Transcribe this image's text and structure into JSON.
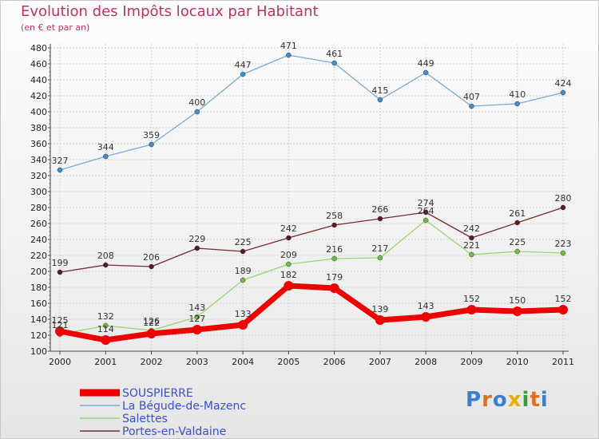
{
  "title": "Evolution des Impôts locaux par Habitant",
  "subtitle": "(en € et par an)",
  "brand": "Proxiti",
  "chart_data": {
    "type": "line",
    "categories": [
      "2000",
      "2001",
      "2002",
      "2003",
      "2004",
      "2005",
      "2006",
      "2007",
      "2008",
      "2009",
      "2010",
      "2011"
    ],
    "ylim": [
      100,
      480
    ],
    "yticks": [
      100,
      120,
      140,
      160,
      180,
      200,
      220,
      240,
      260,
      280,
      300,
      320,
      340,
      360,
      380,
      400,
      420,
      440,
      460,
      480
    ],
    "grid": true,
    "series": [
      {
        "name": "La Bégude-de-Mazenc",
        "color": "#7aaad8",
        "marker": "#3d8fd0",
        "width": 1.3,
        "values": [
          327,
          344,
          359,
          400,
          447,
          471,
          461,
          415,
          449,
          407,
          410,
          424
        ],
        "labels": [
          "327",
          "344",
          "359",
          "400",
          "447",
          "471",
          "461",
          "415",
          "449",
          "407",
          "410",
          "424"
        ]
      },
      {
        "name": "Portes-en-Valdaine",
        "color": "#7a2a30",
        "marker": "#5a1a20",
        "width": 1.3,
        "values": [
          199,
          208,
          206,
          229,
          225,
          242,
          258,
          266,
          274,
          242,
          261,
          280
        ],
        "labels": [
          "199",
          "208",
          "206",
          "229",
          "225",
          "242",
          "258",
          "266",
          "274",
          "242",
          "261",
          "280"
        ]
      },
      {
        "name": "Salettes",
        "color": "#98d870",
        "marker": "#70c040",
        "width": 1.3,
        "values": [
          121,
          132,
          126,
          143,
          189,
          209,
          216,
          217,
          264,
          221,
          225,
          223
        ],
        "labels": [
          "121",
          "132",
          "126",
          "143",
          "189",
          "209",
          "216",
          "217",
          "264",
          "221",
          "225",
          "223"
        ]
      },
      {
        "name": "SOUSPIERRE",
        "color": "#ee0000",
        "marker": "#ee0000",
        "width": 7,
        "values": [
          125,
          114,
          122,
          127,
          133,
          182,
          179,
          139,
          143,
          152,
          150,
          152
        ],
        "labels": [
          "125",
          "114",
          "122",
          "127",
          "133",
          "182",
          "179",
          "139",
          "143",
          "152",
          "150",
          "152"
        ]
      }
    ],
    "legend": {
      "position": "bottom-left",
      "entries": [
        {
          "name": "SOUSPIERRE",
          "color": "#ee0000",
          "thick": true
        },
        {
          "name": "La Bégude-de-Mazenc",
          "color": "#7aaad8",
          "thick": false
        },
        {
          "name": "Salettes",
          "color": "#98d870",
          "thick": false
        },
        {
          "name": "Portes-en-Valdaine",
          "color": "#7a2a30",
          "thick": false
        }
      ]
    }
  }
}
